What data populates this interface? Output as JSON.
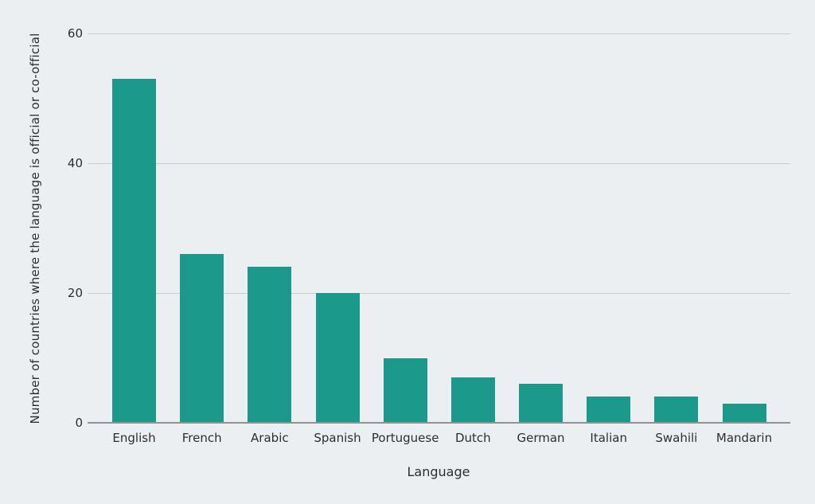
{
  "chart_data": {
    "type": "bar",
    "categories": [
      "English",
      "French",
      "Arabic",
      "Spanish",
      "Portuguese",
      "Dutch",
      "German",
      "Italian",
      "Swahili",
      "Mandarin"
    ],
    "values": [
      53,
      26,
      24,
      20,
      10,
      7,
      6,
      4,
      4,
      3
    ],
    "title": "",
    "xlabel": "Language",
    "ylabel": "Number of countries where the language is official or co-official",
    "ylim": [
      0,
      60
    ],
    "yticks": [
      0,
      20,
      40,
      60
    ],
    "grid": "horizontal",
    "legend_position": "none",
    "bar_color": "#1b9a8b",
    "background_color": "#eceff1",
    "grid_color": "#c9ced2",
    "axis_line_color": "#8f9396",
    "text_color": "#2e2e2e"
  }
}
